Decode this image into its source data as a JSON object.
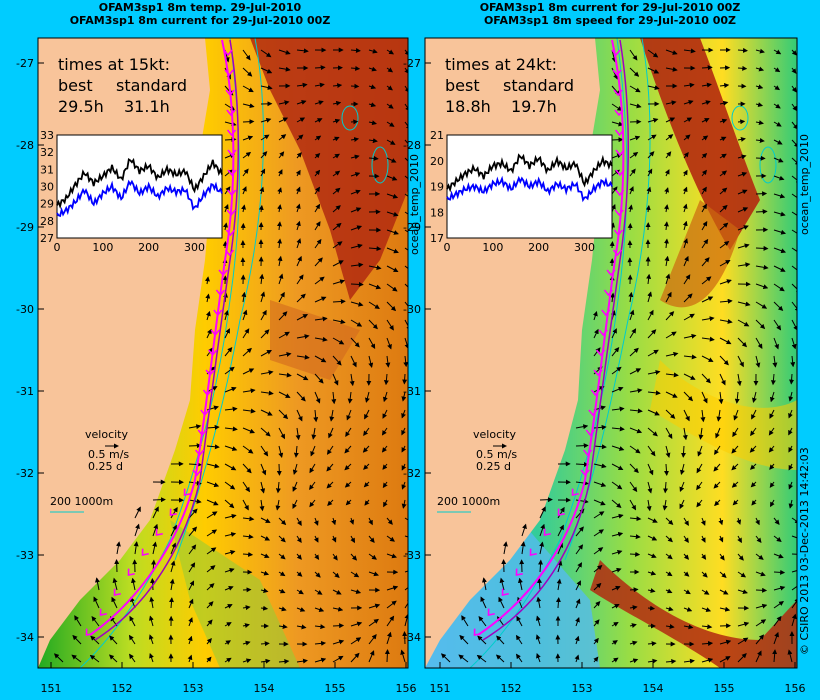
{
  "titles": {
    "left_line1": "OFAM3sp1 8m temp. 29-Jul-2010",
    "left_line2": "OFAM3sp1 8m current for 29-Jul-2010 00Z",
    "right_line1": "OFAM3sp1 8m current for 29-Jul-2010 00Z",
    "right_line2": "OFAM3sp1 8m speed for 29-Jul-2010 00Z"
  },
  "left_panel": {
    "times_title": "times at 15kt:",
    "col_best": "best",
    "col_standard": "standard",
    "best_value": "29.5h",
    "standard_value": "31.1h",
    "inset_yticks": [
      "33",
      "32",
      "31",
      "30",
      "29",
      "28",
      "27"
    ],
    "inset_xticks": [
      "0",
      "100",
      "200",
      "300"
    ],
    "side_label": "ocean_temp_2010"
  },
  "right_panel": {
    "times_title": "times at 24kt:",
    "col_best": "best",
    "col_standard": "standard",
    "best_value": "18.8h",
    "standard_value": "19.7h",
    "inset_yticks": [
      "21",
      "20",
      "19",
      "18",
      "17"
    ],
    "inset_xticks": [
      "0",
      "100",
      "200",
      "300"
    ],
    "side_label": "ocean_temp_2010"
  },
  "legend": {
    "velocity_label": "velocity",
    "speed_label": "0.5 m/s",
    "time_label": "0.25 d",
    "depth_label": "200  1000m"
  },
  "axes": {
    "lat_ticks": [
      "-27",
      "-28",
      "-29",
      "-30",
      "-31",
      "-32",
      "-33",
      "-34"
    ],
    "lon_ticks": [
      "151",
      "152",
      "153",
      "154",
      "155",
      "156"
    ]
  },
  "credit": "© CSIRO 2013   03-Dec-2013 14:42:03",
  "colors": {
    "land": "#f8c49a",
    "frame_bg": "#00ccff",
    "route_best": "#ff00ff",
    "route_standard": "#a000c0",
    "series_best": "#000000",
    "series_standard": "#0000ff",
    "contour": "#00cccc"
  },
  "chart_data": [
    {
      "type": "line",
      "panel": "left",
      "xlim": [
        0,
        360
      ],
      "ylim": [
        27,
        33
      ],
      "series": [
        {
          "name": "best",
          "color": "#000000",
          "x": [
            0,
            20,
            40,
            60,
            80,
            100,
            120,
            140,
            160,
            180,
            200,
            220,
            240,
            260,
            280,
            300,
            320,
            340,
            360
          ],
          "values": [
            28.9,
            29.3,
            30.1,
            30.8,
            30.2,
            30.6,
            31.1,
            30.4,
            31.6,
            30.9,
            31.2,
            30.5,
            31.0,
            30.7,
            30.9,
            29.8,
            30.6,
            31.4,
            30.7
          ]
        },
        {
          "name": "standard",
          "color": "#0000ff",
          "x": [
            0,
            20,
            40,
            60,
            80,
            100,
            120,
            140,
            160,
            180,
            200,
            220,
            240,
            260,
            280,
            300,
            320,
            340,
            360
          ],
          "values": [
            28.3,
            28.6,
            29.1,
            29.8,
            29.0,
            29.6,
            30.0,
            29.3,
            30.3,
            29.6,
            30.0,
            29.4,
            29.9,
            29.7,
            29.8,
            28.7,
            29.5,
            30.1,
            29.6
          ]
        }
      ]
    },
    {
      "type": "line",
      "panel": "right",
      "xlim": [
        0,
        360
      ],
      "ylim": [
        17,
        21
      ],
      "series": [
        {
          "name": "best",
          "color": "#000000",
          "x": [
            0,
            20,
            40,
            60,
            80,
            100,
            120,
            140,
            160,
            180,
            200,
            220,
            240,
            260,
            280,
            300,
            320,
            340,
            360
          ],
          "values": [
            18.9,
            19.2,
            19.5,
            19.7,
            19.4,
            19.8,
            19.9,
            19.6,
            20.2,
            19.8,
            20.1,
            19.6,
            20.0,
            19.7,
            19.9,
            19.1,
            19.6,
            20.0,
            19.8
          ]
        },
        {
          "name": "standard",
          "color": "#0000ff",
          "x": [
            0,
            20,
            40,
            60,
            80,
            100,
            120,
            140,
            160,
            180,
            200,
            220,
            240,
            260,
            280,
            300,
            320,
            340,
            360
          ],
          "values": [
            18.5,
            18.7,
            18.9,
            19.0,
            18.8,
            19.1,
            19.2,
            18.9,
            19.3,
            19.0,
            19.2,
            18.8,
            19.1,
            18.9,
            19.1,
            18.5,
            18.9,
            19.2,
            19.0
          ]
        }
      ]
    }
  ]
}
